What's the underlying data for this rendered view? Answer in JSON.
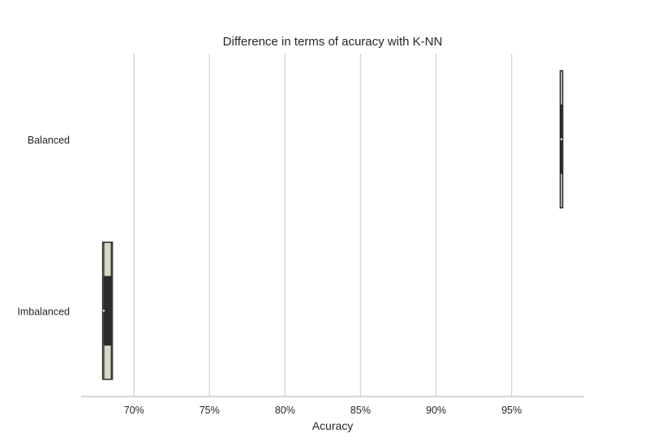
{
  "chart_data": {
    "type": "violin",
    "title": "Difference in terms of acuracy with K-NN",
    "xlabel": "Acuracy",
    "ylabel": "",
    "orientation": "horizontal",
    "xlim": [
      66.5,
      99.8
    ],
    "xticks": [
      70,
      75,
      80,
      85,
      90,
      95
    ],
    "xtick_labels": [
      "70%",
      "75%",
      "80%",
      "85%",
      "90%",
      "95%"
    ],
    "grid": "vertical",
    "categories": [
      "Balanced",
      "Imbalanced"
    ],
    "series": [
      {
        "category": "Balanced",
        "min": 98.3,
        "q1": 98.3,
        "median": 98.3,
        "q3": 98.3,
        "max": 98.3,
        "body_min": 98.25,
        "body_max": 98.35
      },
      {
        "category": "Imbalanced",
        "min": 68.0,
        "q1": 68.0,
        "median": 68.0,
        "q3": 68.5,
        "max": 68.5,
        "body_min": 68.0,
        "body_max": 68.5
      }
    ],
    "colors": {
      "grid": "#d4d4d4",
      "axis": "#c8c8c8",
      "mark": "#2b2b2b",
      "violin_fill": "#d8d8c6"
    }
  }
}
